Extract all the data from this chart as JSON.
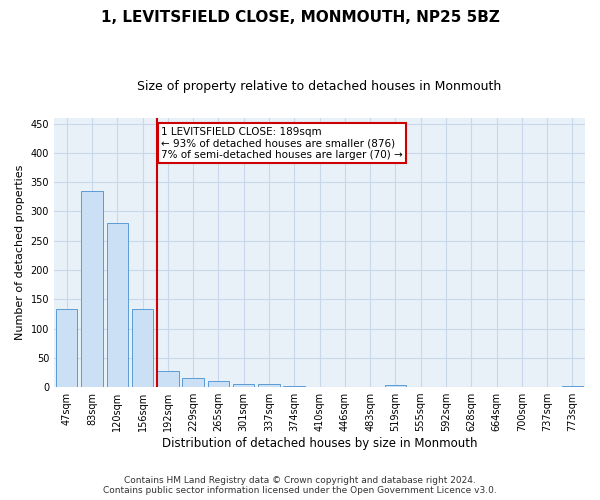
{
  "title": "1, LEVITSFIELD CLOSE, MONMOUTH, NP25 5BZ",
  "subtitle": "Size of property relative to detached houses in Monmouth",
  "xlabel": "Distribution of detached houses by size in Monmouth",
  "ylabel": "Number of detached properties",
  "categories": [
    "47sqm",
    "83sqm",
    "120sqm",
    "156sqm",
    "192sqm",
    "229sqm",
    "265sqm",
    "301sqm",
    "337sqm",
    "374sqm",
    "410sqm",
    "446sqm",
    "483sqm",
    "519sqm",
    "555sqm",
    "592sqm",
    "628sqm",
    "664sqm",
    "700sqm",
    "737sqm",
    "773sqm"
  ],
  "values": [
    134,
    335,
    281,
    133,
    27,
    15,
    10,
    6,
    5,
    2,
    0,
    0,
    0,
    4,
    0,
    0,
    0,
    0,
    0,
    0,
    2
  ],
  "bar_color": "#cce0f5",
  "bar_edge_color": "#5b9bd5",
  "vline_x_index": 4,
  "vline_color": "#cc0000",
  "annotation_line1": "1 LEVITSFIELD CLOSE: 189sqm",
  "annotation_line2": "← 93% of detached houses are smaller (876)",
  "annotation_line3": "7% of semi-detached houses are larger (70) →",
  "annotation_box_color": "#cc0000",
  "ylim": [
    0,
    460
  ],
  "yticks": [
    0,
    50,
    100,
    150,
    200,
    250,
    300,
    350,
    400,
    450
  ],
  "grid_color": "#c8d8ea",
  "background_color": "#e8f0f8",
  "footer_line1": "Contains HM Land Registry data © Crown copyright and database right 2024.",
  "footer_line2": "Contains public sector information licensed under the Open Government Licence v3.0.",
  "title_fontsize": 11,
  "subtitle_fontsize": 9,
  "xlabel_fontsize": 8.5,
  "ylabel_fontsize": 8,
  "tick_fontsize": 7,
  "annotation_fontsize": 7.5,
  "footer_fontsize": 6.5
}
